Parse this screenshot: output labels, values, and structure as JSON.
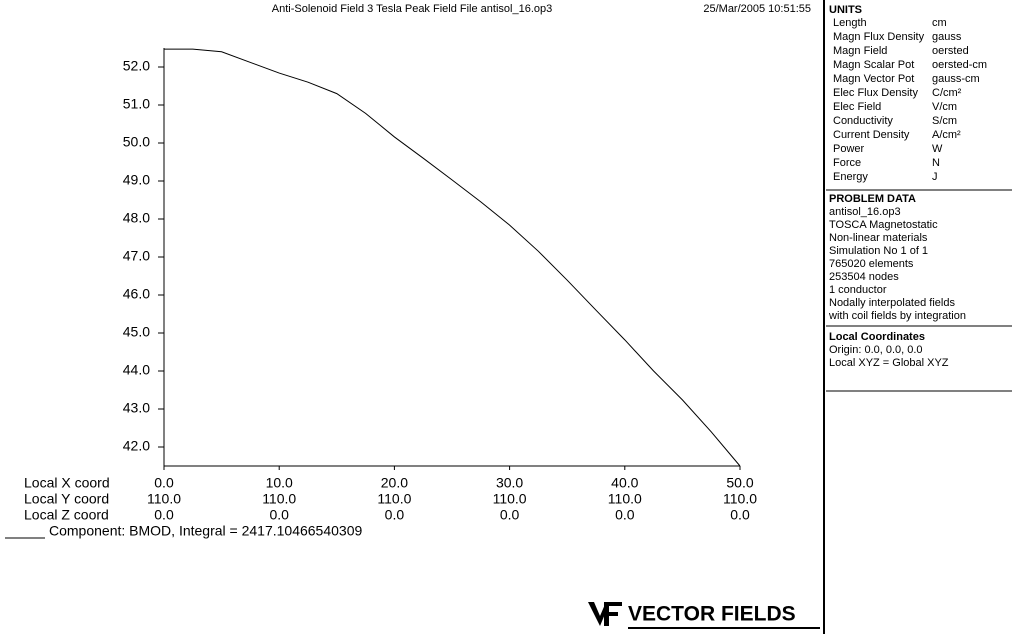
{
  "chart_data": {
    "type": "line",
    "title": "Anti-Solenoid Field   3 Tesla Peak Field File antisol_16.op3",
    "timestamp": "25/Mar/2005 10:51:55",
    "x": [
      0,
      2.5,
      5,
      7.5,
      10,
      12.5,
      15,
      17.5,
      20,
      22.5,
      25,
      27.5,
      30,
      32.5,
      35,
      37.5,
      40,
      42.5,
      45,
      47.5,
      50
    ],
    "series": [
      {
        "name": "Component: BMOD, Integral = 2417.10466540309",
        "color": "#000000",
        "values": [
          52.47,
          52.47,
          52.4,
          52.12,
          51.84,
          51.6,
          51.3,
          50.78,
          50.16,
          49.6,
          49.03,
          48.45,
          47.84,
          47.15,
          46.39,
          45.6,
          44.82,
          44.0,
          43.24,
          42.4,
          41.5
        ]
      }
    ],
    "xlim": [
      0,
      50
    ],
    "ylim": [
      41.5,
      52.5
    ],
    "xlabel": "Local X coord",
    "xticks": [
      {
        "value": 0,
        "label": "0.0"
      },
      {
        "value": 10,
        "label": "10.0"
      },
      {
        "value": 20,
        "label": "20.0"
      },
      {
        "value": 30,
        "label": "30.0"
      },
      {
        "value": 40,
        "label": "40.0"
      },
      {
        "value": 50,
        "label": "50.0"
      }
    ],
    "y_coord": {
      "label": "Local Y coord",
      "values": [
        "110.0",
        "110.0",
        "110.0",
        "110.0",
        "110.0",
        "110.0"
      ]
    },
    "z_coord": {
      "label": "Local Z coord",
      "values": [
        "0.0",
        "0.0",
        "0.0",
        "0.0",
        "0.0",
        "0.0"
      ]
    },
    "yticks": [
      {
        "value": 42,
        "label": "42.0"
      },
      {
        "value": 43,
        "label": "43.0"
      },
      {
        "value": 44,
        "label": "44.0"
      },
      {
        "value": 45,
        "label": "45.0"
      },
      {
        "value": 46,
        "label": "46.0"
      },
      {
        "value": 47,
        "label": "47.0"
      },
      {
        "value": 48,
        "label": "48.0"
      },
      {
        "value": 49,
        "label": "49.0"
      },
      {
        "value": 50,
        "label": "50.0"
      },
      {
        "value": 51,
        "label": "51.0"
      },
      {
        "value": 52,
        "label": "52.0"
      }
    ]
  },
  "panel": {
    "units": {
      "title": "UNITS",
      "rows": [
        [
          "Length",
          "cm"
        ],
        [
          "Magn Flux Density",
          "gauss"
        ],
        [
          "Magn Field",
          "oersted"
        ],
        [
          "Magn Scalar Pot",
          "oersted-cm"
        ],
        [
          "Magn Vector Pot",
          "gauss-cm"
        ],
        [
          "Elec Flux Density",
          "C/cm²"
        ],
        [
          "Elec Field",
          "V/cm"
        ],
        [
          "Conductivity",
          "S/cm"
        ],
        [
          "Current Density",
          "A/cm²"
        ],
        [
          "Power",
          "W"
        ],
        [
          "Force",
          "N"
        ],
        [
          "Energy",
          "J"
        ]
      ]
    },
    "problem": {
      "title": "PROBLEM DATA",
      "lines": [
        "antisol_16.op3",
        "TOSCA Magnetostatic",
        "Non-linear materials",
        "Simulation No 1 of 1",
        "765020 elements",
        "253504 nodes",
        "1 conductor",
        "Nodally interpolated fields",
        "with coil fields by integration"
      ]
    },
    "local": {
      "title": "Local Coordinates",
      "lines": [
        "Origin: 0.0, 0.0, 0.0",
        "Local XYZ = Global XYZ"
      ]
    }
  },
  "logo": "VECTOR FIELDS"
}
